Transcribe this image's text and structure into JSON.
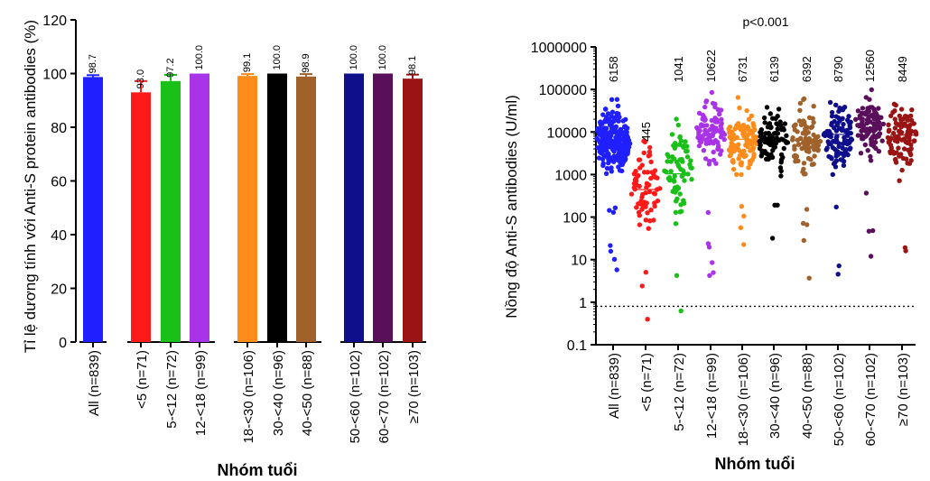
{
  "chart_data": [
    {
      "type": "bar",
      "ylabel": "Tỉ lệ dương tính với Anti-S protein antibodies (%)",
      "xlabel": "Nhóm tuổi",
      "ylim": [
        0,
        120
      ],
      "yticks": [
        "0",
        "20",
        "40",
        "60",
        "80",
        "100",
        "120"
      ],
      "categories": [
        "All (n=839)",
        "<5 (n=71)",
        "5-<12 (n=72)",
        "12-<18 (n=99)",
        "18-<30 (n=106)",
        "30-<40 (n=96)",
        "40-<50 (n=88)",
        "50-<60 (n=102)",
        "60-<70 (n=102)",
        "≥70 (n=103)"
      ],
      "values": [
        98.7,
        93.0,
        97.2,
        100.0,
        99.1,
        100.0,
        98.9,
        100.0,
        100.0,
        98.1
      ],
      "value_labels": [
        "98.7",
        "93.0",
        "97.2",
        "100.0",
        "99.1",
        "100.0",
        "98.9",
        "100.0",
        "100.0",
        "98.1"
      ],
      "error_upper": [
        99.4,
        97.2,
        99.5,
        100.0,
        99.8,
        100.0,
        99.8,
        100.0,
        100.0,
        99.6
      ],
      "colors": [
        "#1f1fff",
        "#ff1a1a",
        "#18c018",
        "#a933e6",
        "#ff8c1a",
        "#000000",
        "#a0622a",
        "#0f0f8c",
        "#5a0f5a",
        "#9a1414"
      ]
    },
    {
      "type": "scatter",
      "annotation": "p<0.001",
      "ylabel": "Nồng độ Anti-S antibodies (U/ml)",
      "xlabel": "Nhóm tuổi",
      "yscale": "log",
      "ylim": [
        0.1,
        1000000
      ],
      "yticks": [
        "0.1",
        "1",
        "10",
        "100",
        "1000",
        "10000",
        "100000",
        "1000000"
      ],
      "threshold": 0.8,
      "categories": [
        "All (n=839)",
        "<5 (n=71)",
        "5-<12 (n=72)",
        "12-<18 (n=99)",
        "18-<30 (n=106)",
        "30-<40 (n=96)",
        "40-<50 (n=88)",
        "50-<60 (n=102)",
        "60-<70 (n=102)",
        "≥70 (n=103)"
      ],
      "medians": [
        6158,
        445,
        1041,
        10622,
        6731,
        6139,
        6392,
        8790,
        12560,
        8449
      ],
      "median_labels": [
        "6158",
        "445",
        "1041",
        "10622",
        "6731",
        "6139",
        "6392",
        "8790",
        "12560",
        "8449"
      ],
      "counts": [
        839,
        71,
        72,
        99,
        106,
        96,
        88,
        102,
        102,
        103
      ],
      "colors": [
        "#1f1fff",
        "#ff1a1a",
        "#18c018",
        "#a933e6",
        "#ff8c1a",
        "#000000",
        "#a0622a",
        "#0f0f8c",
        "#5a0f5a",
        "#9a1414"
      ]
    }
  ]
}
